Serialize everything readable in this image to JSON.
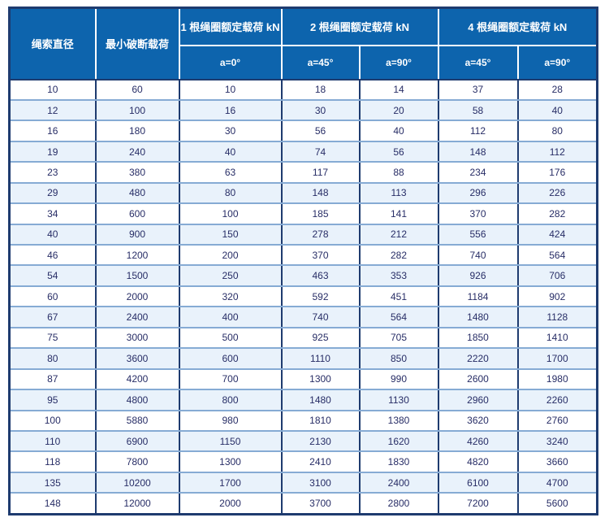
{
  "page": {
    "background": "#ffffff"
  },
  "colors": {
    "header_bg": "#0d64ad",
    "header_text": "#ffffff",
    "frame_border": "#1e3b6f",
    "row_bg": "#ffffff",
    "row_alt_bg": "#e9f2fb",
    "row_separator": "#86abd4",
    "cell_text": "#272d66"
  },
  "table": {
    "header": {
      "diameter": "绳索直径",
      "min_breaking_load": "最小破断载荷",
      "group_1": "1 根绳圈额定载荷 kN",
      "group_2": "2 根绳圈额定载荷 kN",
      "group_4": "4 根绳圈额定载荷 kN",
      "sub_a0": "a=0°",
      "sub_a45": "a=45°",
      "sub_a90": "a=90°"
    },
    "rows": [
      [
        "10",
        "60",
        "10",
        "18",
        "14",
        "37",
        "28"
      ],
      [
        "12",
        "100",
        "16",
        "30",
        "20",
        "58",
        "40"
      ],
      [
        "16",
        "180",
        "30",
        "56",
        "40",
        "112",
        "80"
      ],
      [
        "19",
        "240",
        "40",
        "74",
        "56",
        "148",
        "112"
      ],
      [
        "23",
        "380",
        "63",
        "117",
        "88",
        "234",
        "176"
      ],
      [
        "29",
        "480",
        "80",
        "148",
        "113",
        "296",
        "226"
      ],
      [
        "34",
        "600",
        "100",
        "185",
        "141",
        "370",
        "282"
      ],
      [
        "40",
        "900",
        "150",
        "278",
        "212",
        "556",
        "424"
      ],
      [
        "46",
        "1200",
        "200",
        "370",
        "282",
        "740",
        "564"
      ],
      [
        "54",
        "1500",
        "250",
        "463",
        "353",
        "926",
        "706"
      ],
      [
        "60",
        "2000",
        "320",
        "592",
        "451",
        "1184",
        "902"
      ],
      [
        "67",
        "2400",
        "400",
        "740",
        "564",
        "1480",
        "1128"
      ],
      [
        "75",
        "3000",
        "500",
        "925",
        "705",
        "1850",
        "1410"
      ],
      [
        "80",
        "3600",
        "600",
        "1110",
        "850",
        "2220",
        "1700"
      ],
      [
        "87",
        "4200",
        "700",
        "1300",
        "990",
        "2600",
        "1980"
      ],
      [
        "95",
        "4800",
        "800",
        "1480",
        "1130",
        "2960",
        "2260"
      ],
      [
        "100",
        "5880",
        "980",
        "1810",
        "1380",
        "3620",
        "2760"
      ],
      [
        "110",
        "6900",
        "1150",
        "2130",
        "1620",
        "4260",
        "3240"
      ],
      [
        "118",
        "7800",
        "1300",
        "2410",
        "1830",
        "4820",
        "3660"
      ],
      [
        "135",
        "10200",
        "1700",
        "3100",
        "2400",
        "6100",
        "4700"
      ],
      [
        "148",
        "12000",
        "2000",
        "3700",
        "2800",
        "7200",
        "5600"
      ]
    ]
  }
}
